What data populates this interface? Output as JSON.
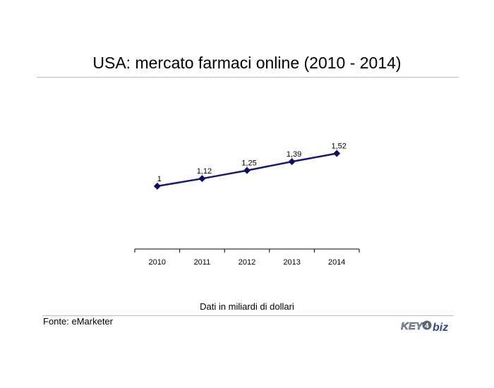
{
  "title": "USA: mercato farmaci online (2010 - 2014)",
  "unit_note": "Dati in miliardi di dollari",
  "source": "Fonte: eMarketer",
  "logo_text": "KEY4biz",
  "colors": {
    "line": "#1a1a6e",
    "marker": "#0d0d5e",
    "rule": "#bdbdbd"
  },
  "chart_data": {
    "type": "line",
    "title": "USA: mercato farmaci online (2010 - 2014)",
    "xlabel": "",
    "ylabel": "",
    "categories": [
      "2010",
      "2011",
      "2012",
      "2013",
      "2014"
    ],
    "series": [
      {
        "values": [
          1,
          1.12,
          1.25,
          1.39,
          1.52
        ],
        "labels": [
          "1",
          "1,12",
          "1,25",
          "1,39",
          "1,52"
        ]
      }
    ],
    "ylim": [
      0,
      2.3
    ],
    "grid": false,
    "legend": "none"
  }
}
